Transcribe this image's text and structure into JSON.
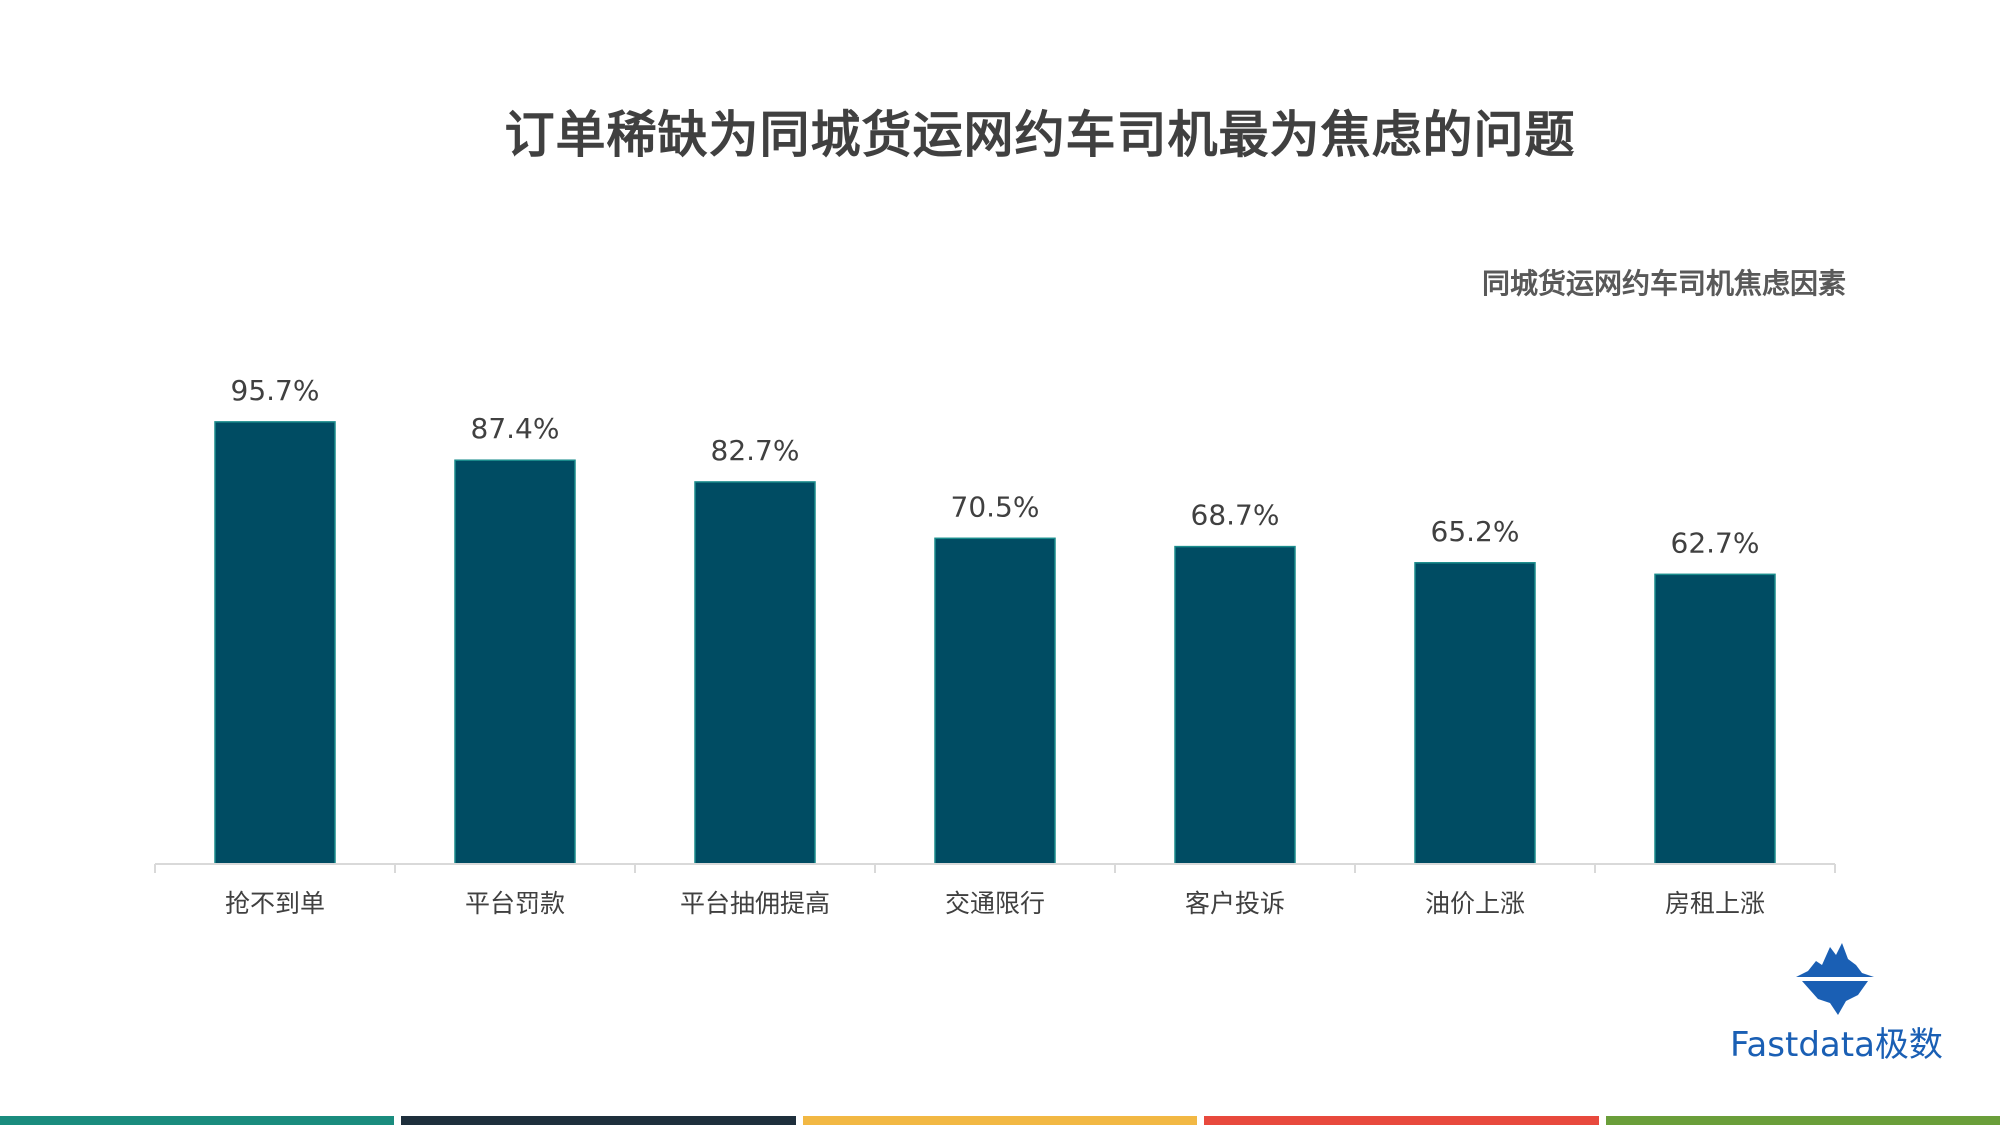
{
  "page": {
    "title": "订单稀缺为同城货运网约车司机最为焦虑的问题"
  },
  "chart_data": {
    "type": "bar",
    "title": "同城货运网约车司机焦虑因素",
    "categories": [
      "抢不到单",
      "平台罚款",
      "平台抽佣提高",
      "交通限行",
      "客户投诉",
      "油价上涨",
      "房租上涨"
    ],
    "values": [
      95.7,
      87.4,
      82.7,
      70.5,
      68.7,
      65.2,
      62.7
    ],
    "value_labels": [
      "95.7%",
      "87.4%",
      "82.7%",
      "70.5%",
      "68.7%",
      "65.2%",
      "62.7%"
    ],
    "unit": "%",
    "ylim": [
      0,
      100
    ],
    "grid": false,
    "bar_color": "#004c63",
    "bar_edge_color": "#1a8c8c"
  },
  "logo": {
    "text": "Fastdata极数",
    "color": "#1a5fb4",
    "icon": "iceberg-icon"
  },
  "footer": {
    "stripe_colors": [
      "#1a8c7e",
      "#1e2f3c",
      "#f2b844",
      "#e8493d",
      "#6a9e3a"
    ]
  }
}
